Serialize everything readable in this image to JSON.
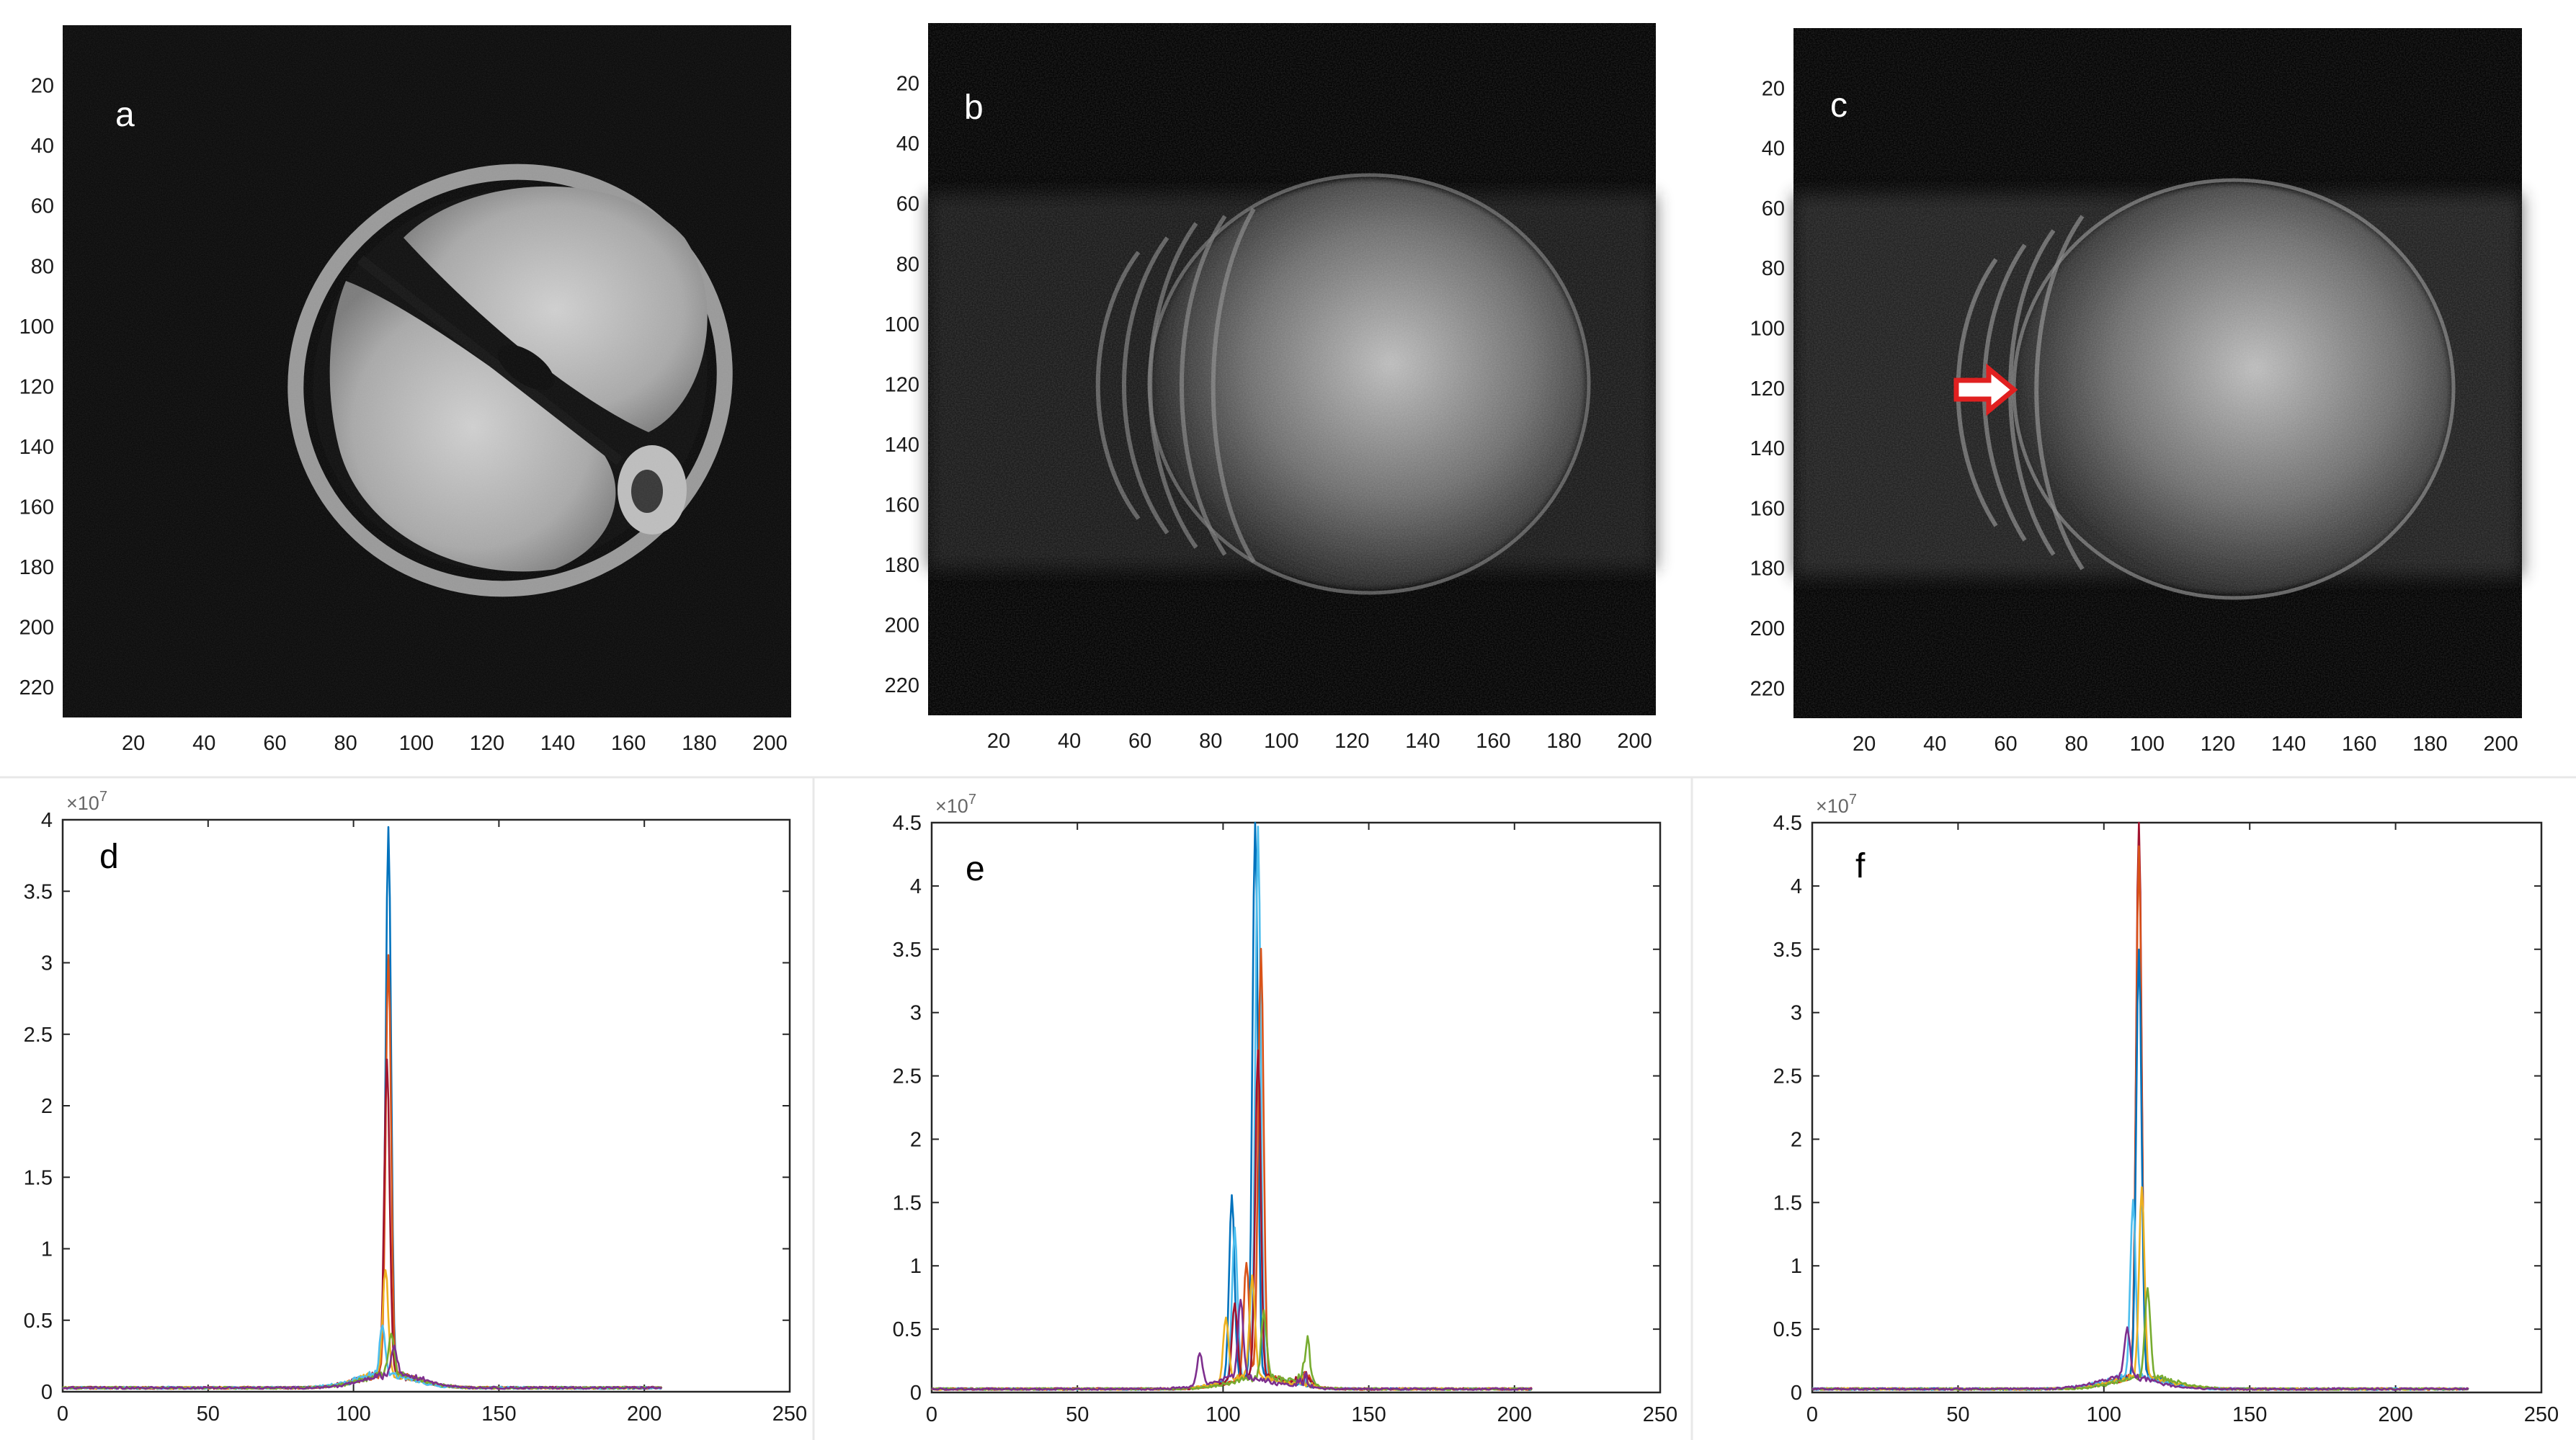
{
  "figure": {
    "panels_top": [
      {
        "id": "a",
        "label": "a"
      },
      {
        "id": "b",
        "label": "b"
      },
      {
        "id": "c",
        "label": "c"
      }
    ],
    "panels_bottom": [
      {
        "id": "d",
        "label": "d"
      },
      {
        "id": "e",
        "label": "e"
      },
      {
        "id": "f",
        "label": "f"
      }
    ],
    "image_axes": {
      "x_ticks": [
        "20",
        "40",
        "60",
        "80",
        "100",
        "120",
        "140",
        "160",
        "180",
        "200"
      ],
      "y_ticks": [
        "20",
        "40",
        "60",
        "80",
        "100",
        "120",
        "140",
        "160",
        "180",
        "200",
        "220"
      ],
      "xlim": [
        0,
        206
      ],
      "ylim": [
        0,
        230
      ]
    },
    "arrow": {
      "panel": "c",
      "color": "#e02020",
      "meaning": "arrow-icon"
    }
  },
  "chart_data": [
    {
      "type": "line",
      "panel": "d",
      "x_ticks": [
        "0",
        "50",
        "100",
        "150",
        "200",
        "250"
      ],
      "y_ticks": [
        "0",
        "0.5",
        "1",
        "1.5",
        "2",
        "2.5",
        "3",
        "3.5",
        "4"
      ],
      "y_exponent": "×10",
      "y_exponent_power": "7",
      "xlim": [
        0,
        250
      ],
      "ylim": [
        0,
        4
      ],
      "series": [
        {
          "color": "#0072BD",
          "peaks": [
            {
              "x": 112,
              "y": 3.85
            }
          ]
        },
        {
          "color": "#D95319",
          "peaks": [
            {
              "x": 112,
              "y": 2.95
            }
          ]
        },
        {
          "color": "#A2142F",
          "peaks": [
            {
              "x": 111.5,
              "y": 2.2
            }
          ]
        },
        {
          "color": "#EDB120",
          "peaks": [
            {
              "x": 111,
              "y": 0.75
            }
          ]
        },
        {
          "color": "#4DBEEE",
          "peaks": [
            {
              "x": 110,
              "y": 0.35
            }
          ]
        },
        {
          "color": "#77AC30",
          "peaks": [
            {
              "x": 113,
              "y": 0.3
            }
          ]
        },
        {
          "color": "#7E2F8E",
          "peaks": [
            {
              "x": 114,
              "y": 0.2
            }
          ]
        }
      ]
    },
    {
      "type": "line",
      "panel": "e",
      "x_ticks": [
        "0",
        "50",
        "100",
        "150",
        "200",
        "250"
      ],
      "y_ticks": [
        "0",
        "0.5",
        "1",
        "1.5",
        "2",
        "2.5",
        "3",
        "3.5",
        "4",
        "4.5"
      ],
      "y_exponent": "×10",
      "y_exponent_power": "7",
      "xlim": [
        0,
        250
      ],
      "ylim": [
        0,
        4.5
      ],
      "series": [
        {
          "color": "#0072BD",
          "peaks": [
            {
              "x": 111,
              "y": 4.42
            },
            {
              "x": 103,
              "y": 1.45
            }
          ]
        },
        {
          "color": "#4DBEEE",
          "peaks": [
            {
              "x": 112,
              "y": 4.35
            },
            {
              "x": 104,
              "y": 1.2
            }
          ]
        },
        {
          "color": "#D95319",
          "peaks": [
            {
              "x": 113,
              "y": 3.4
            },
            {
              "x": 108,
              "y": 0.9
            }
          ]
        },
        {
          "color": "#A2142F",
          "peaks": [
            {
              "x": 112,
              "y": 2.6
            },
            {
              "x": 104,
              "y": 0.6
            }
          ]
        },
        {
          "color": "#EDB120",
          "peaks": [
            {
              "x": 110,
              "y": 0.8
            },
            {
              "x": 101,
              "y": 0.5
            }
          ]
        },
        {
          "color": "#77AC30",
          "peaks": [
            {
              "x": 114,
              "y": 0.5
            },
            {
              "x": 129,
              "y": 0.28
            }
          ]
        },
        {
          "color": "#7E2F8E",
          "peaks": [
            {
              "x": 106,
              "y": 0.6
            },
            {
              "x": 92,
              "y": 0.25
            }
          ]
        }
      ]
    },
    {
      "type": "line",
      "panel": "f",
      "x_ticks": [
        "0",
        "50",
        "100",
        "150",
        "200",
        "250"
      ],
      "y_ticks": [
        "0",
        "0.5",
        "1",
        "1.5",
        "2",
        "2.5",
        "3",
        "3.5",
        "4",
        "4.5"
      ],
      "y_exponent": "×10",
      "y_exponent_power": "7",
      "xlim": [
        0,
        250
      ],
      "ylim": [
        0,
        4.5
      ],
      "series": [
        {
          "color": "#A2142F",
          "peaks": [
            {
              "x": 112,
              "y": 4.42
            }
          ]
        },
        {
          "color": "#D95319",
          "peaks": [
            {
              "x": 112,
              "y": 4.2
            }
          ]
        },
        {
          "color": "#0072BD",
          "peaks": [
            {
              "x": 112,
              "y": 3.4
            }
          ]
        },
        {
          "color": "#4DBEEE",
          "peaks": [
            {
              "x": 110,
              "y": 1.4
            }
          ]
        },
        {
          "color": "#EDB120",
          "peaks": [
            {
              "x": 113,
              "y": 1.5
            }
          ]
        },
        {
          "color": "#77AC30",
          "peaks": [
            {
              "x": 115,
              "y": 0.7
            }
          ]
        },
        {
          "color": "#7E2F8E",
          "peaks": [
            {
              "x": 108,
              "y": 0.4
            }
          ]
        }
      ]
    }
  ]
}
